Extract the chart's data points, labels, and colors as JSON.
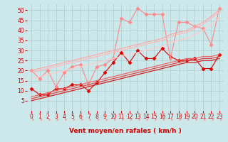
{
  "background_color": "#cce8ea",
  "grid_color": "#aacccc",
  "x_values": [
    0,
    1,
    2,
    3,
    4,
    5,
    6,
    7,
    8,
    9,
    10,
    11,
    12,
    13,
    14,
    15,
    16,
    17,
    18,
    19,
    20,
    21,
    22,
    23
  ],
  "series": [
    {
      "color": "#dd0000",
      "linewidth": 0.8,
      "marker": "D",
      "markersize": 2.5,
      "y": [
        11,
        8,
        8,
        11,
        11,
        13,
        13,
        10,
        14,
        19,
        24,
        29,
        24,
        30,
        26,
        26,
        31,
        27,
        25,
        25,
        26,
        21,
        21,
        28
      ]
    },
    {
      "color": "#ff8888",
      "linewidth": 0.8,
      "marker": "D",
      "markersize": 2.5,
      "y": [
        20,
        16,
        20,
        12,
        19,
        22,
        23,
        13,
        22,
        23,
        26,
        46,
        44,
        51,
        48,
        48,
        48,
        26,
        44,
        44,
        42,
        41,
        33,
        51
      ]
    },
    {
      "color": "#cc2222",
      "linewidth": 0.9,
      "marker": null,
      "markersize": 0,
      "y": [
        5,
        6,
        7,
        8,
        9,
        10,
        11,
        12,
        13,
        14,
        15,
        16,
        17,
        18,
        19,
        20,
        21,
        22,
        23,
        24,
        24,
        25,
        25,
        26
      ]
    },
    {
      "color": "#dd4444",
      "linewidth": 0.9,
      "marker": null,
      "markersize": 0,
      "y": [
        6,
        7,
        8,
        9,
        10,
        11,
        12,
        13,
        14,
        15,
        16,
        17,
        18,
        19,
        20,
        21,
        22,
        23,
        24,
        25,
        25,
        26,
        26,
        27
      ]
    },
    {
      "color": "#ee6666",
      "linewidth": 0.9,
      "marker": null,
      "markersize": 0,
      "y": [
        7,
        8,
        9,
        10,
        11,
        12,
        13,
        14,
        15,
        16,
        17,
        18,
        19,
        20,
        21,
        22,
        23,
        24,
        25,
        26,
        26,
        27,
        27,
        28
      ]
    },
    {
      "color": "#ffaaaa",
      "linewidth": 0.9,
      "marker": null,
      "markersize": 0,
      "y": [
        20,
        21,
        22,
        23,
        24,
        25,
        26,
        27,
        28,
        29,
        30,
        31,
        32,
        33,
        34,
        35,
        36,
        38,
        39,
        40,
        42,
        44,
        47,
        50
      ]
    },
    {
      "color": "#ffbbbb",
      "linewidth": 0.9,
      "marker": null,
      "markersize": 0,
      "y": [
        19,
        20,
        21,
        22,
        23,
        24,
        25,
        26,
        27,
        28,
        29,
        30,
        31,
        32,
        33,
        34,
        35,
        37,
        38,
        39,
        41,
        43,
        46,
        49
      ]
    },
    {
      "color": "#ffcccc",
      "linewidth": 0.9,
      "marker": null,
      "markersize": 0,
      "y": [
        16,
        17,
        18,
        19,
        20,
        21,
        22,
        23,
        24,
        25,
        26,
        27,
        28,
        29,
        30,
        31,
        32,
        34,
        35,
        36,
        38,
        40,
        43,
        46
      ]
    }
  ],
  "xlabel": "Vent moyen/en rafales ( km/h )",
  "ylim": [
    0,
    53
  ],
  "yticks": [
    5,
    10,
    15,
    20,
    25,
    30,
    35,
    40,
    45,
    50
  ],
  "xlim": [
    -0.5,
    23.5
  ],
  "xticks": [
    0,
    1,
    2,
    3,
    4,
    5,
    6,
    7,
    8,
    9,
    10,
    11,
    12,
    13,
    14,
    15,
    16,
    17,
    18,
    19,
    20,
    21,
    22,
    23
  ],
  "xlabel_color": "#cc0000",
  "xlabel_fontsize": 6.5,
  "tick_fontsize": 5.5,
  "tick_color": "#cc0000",
  "arrow_color": "#ff8888"
}
